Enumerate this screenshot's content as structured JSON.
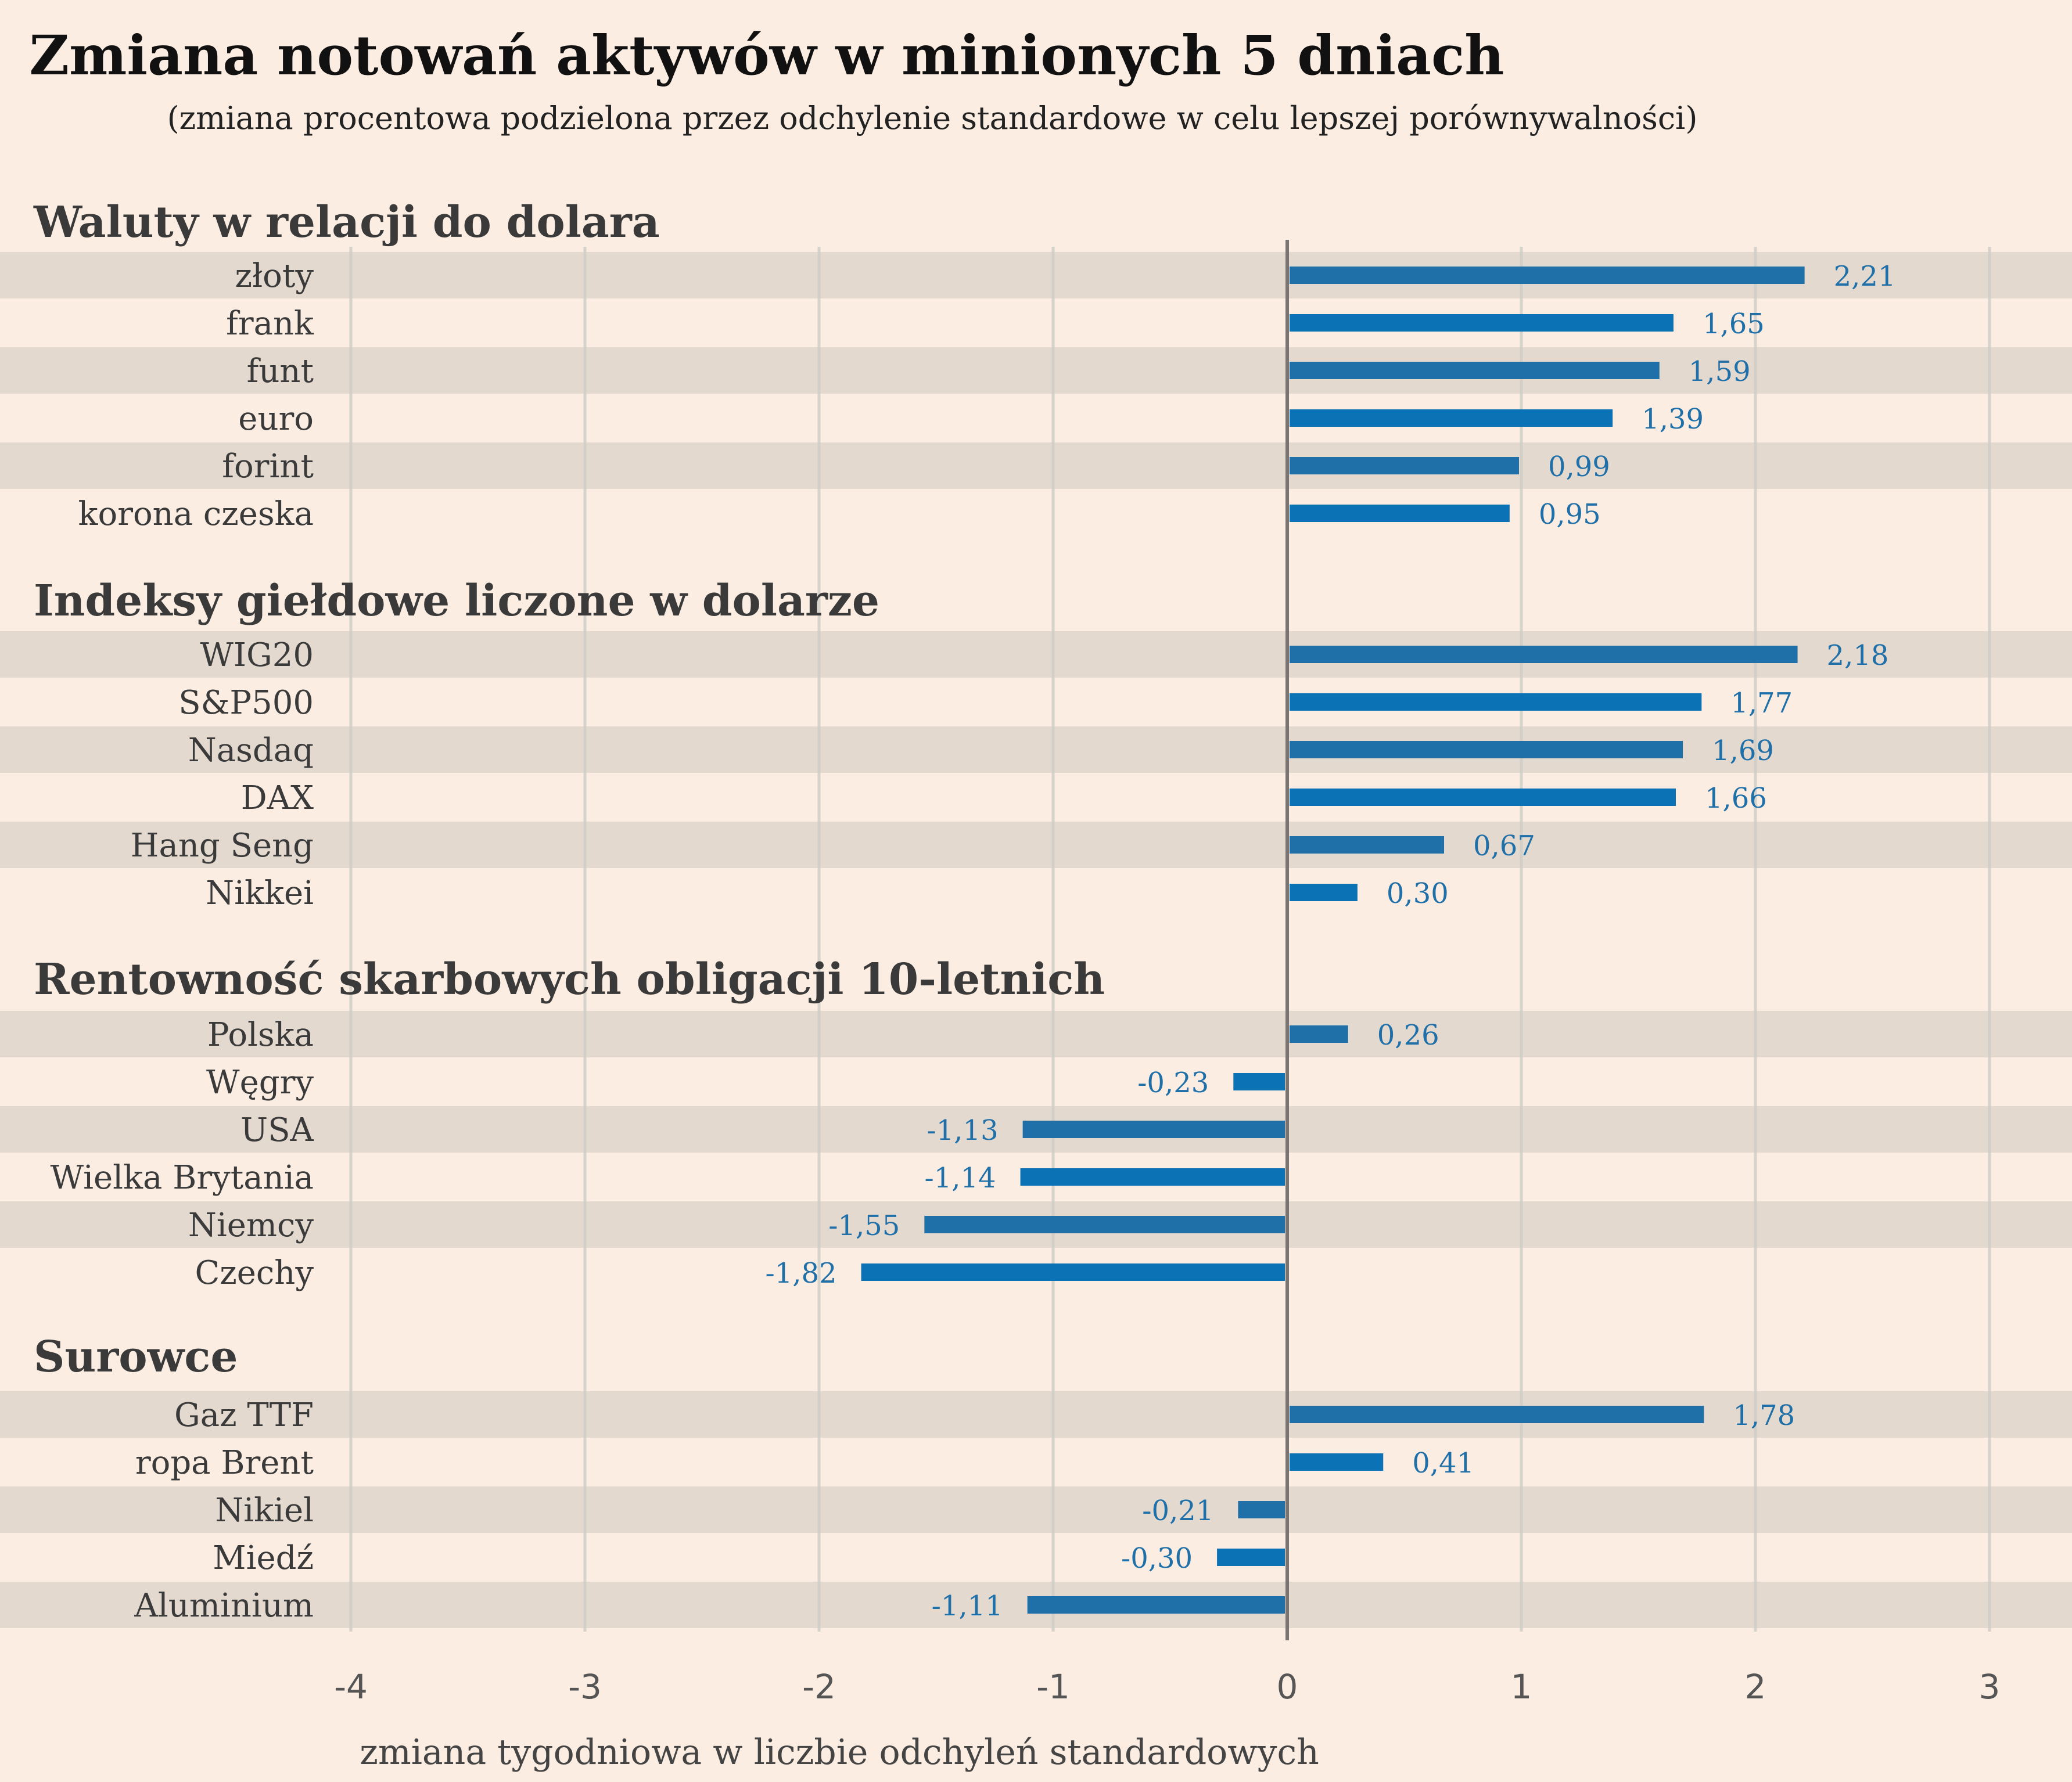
{
  "title": "Zmiana notowań aktywów w minionych 5 dniach",
  "subtitle": "(zmiana procentowa podzielona przez odchylenie standardowe w celu lepszej porównywalności)",
  "colors": {
    "background": "#fbede1",
    "band": "#e4d9cf",
    "bar_dark": "#1f6fa8",
    "bar_bright": "#0a72b5",
    "grid": "#cfcdc8",
    "zero_line": "#7a7573"
  },
  "chart_data": {
    "type": "bar",
    "orientation": "horizontal",
    "xlabel": "zmiana tygodniowa w liczbie odchyleń standardowych",
    "xlim": [
      -4,
      3
    ],
    "xticks": [
      "-4",
      "-3",
      "-2",
      "-1",
      "0",
      "1",
      "2",
      "3"
    ],
    "grid": true,
    "groups": [
      {
        "name": "Waluty w relacji do dolara",
        "categories": [
          "złoty",
          "frank",
          "funt",
          "euro",
          "forint",
          "korona czeska"
        ],
        "values": [
          2.21,
          1.65,
          1.59,
          1.39,
          0.99,
          0.95
        ],
        "labels": [
          "2,21",
          "1,65",
          "1,59",
          "1,39",
          "0,99",
          "0,95"
        ]
      },
      {
        "name": "Indeksy giełdowe liczone w dolarze",
        "categories": [
          "WIG20",
          "S&P500",
          "Nasdaq",
          "DAX",
          "Hang Seng",
          "Nikkei"
        ],
        "values": [
          2.18,
          1.77,
          1.69,
          1.66,
          0.67,
          0.3
        ],
        "labels": [
          "2,18",
          "1,77",
          "1,69",
          "1,66",
          "0,67",
          "0,30"
        ]
      },
      {
        "name": "Rentowność skarbowych obligacji 10-letnich",
        "categories": [
          "Polska",
          "Węgry",
          "USA",
          "Wielka Brytania",
          "Niemcy",
          "Czechy"
        ],
        "values": [
          0.26,
          -0.23,
          -1.13,
          -1.14,
          -1.55,
          -1.82
        ],
        "labels": [
          "0,26",
          "-0,23",
          "-1,13",
          "-1,14",
          "-1,55",
          "-1,82"
        ]
      },
      {
        "name": "Surowce",
        "categories": [
          "Gaz TTF",
          "ropa Brent",
          "Nikiel",
          "Miedź",
          "Aluminium"
        ],
        "values": [
          1.78,
          0.41,
          -0.21,
          -0.3,
          -1.11
        ],
        "labels": [
          "1,78",
          "0,41",
          "-0,21",
          "-0,30",
          "-1,11"
        ]
      }
    ]
  }
}
